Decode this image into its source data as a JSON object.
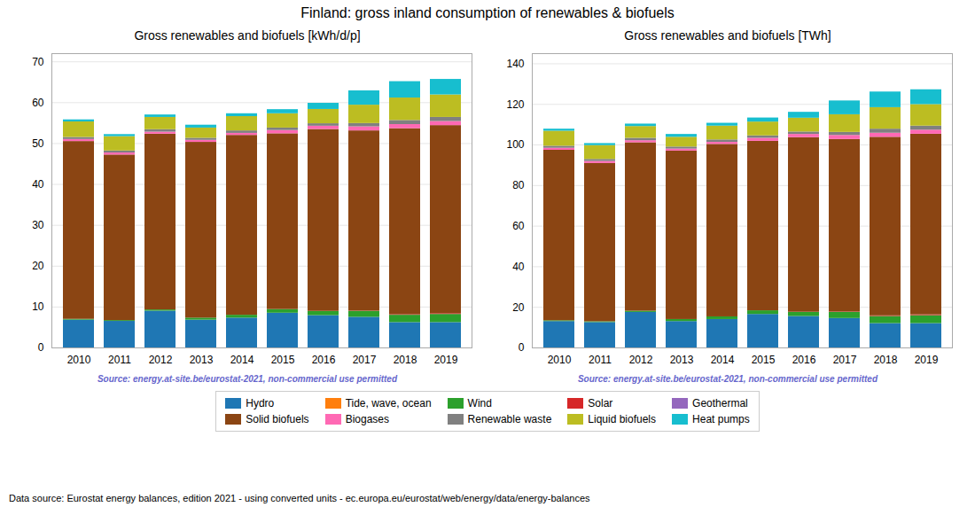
{
  "title": "Finland: gross inland consumption of renewables & biofuels",
  "legend": "bottom",
  "annotations": [
    "Data source: Eurostat energy balances, edition 2021 - using converted units - ec.europa.eu/eurostat/web/energy/data/energy-balances"
  ],
  "chart_data": [
    {
      "type": "bar",
      "stacked": true,
      "grid": true,
      "subtitle": "Gross renewables and biofuels [kWh/d/p]",
      "annotations": [
        "Source: energy.at-site.be/eurostat-2021, non-commercial use permitted"
      ],
      "categories": [
        "2010",
        "2011",
        "2012",
        "2013",
        "2014",
        "2015",
        "2016",
        "2017",
        "2018",
        "2019"
      ],
      "series": [
        {
          "name": "Hydro",
          "color": "#1f77b4",
          "values": [
            6.8,
            6.5,
            9.0,
            6.8,
            7.3,
            8.5,
            7.9,
            7.5,
            6.2,
            6.2
          ]
        },
        {
          "name": "Tide, wave, ocean",
          "color": "#ff7f0e",
          "values": [
            0.0,
            0.0,
            0.0,
            0.0,
            0.0,
            0.0,
            0.0,
            0.0,
            0.0,
            0.0
          ]
        },
        {
          "name": "Wind",
          "color": "#2ca02c",
          "values": [
            0.2,
            0.2,
            0.3,
            0.5,
            0.7,
            0.9,
            1.0,
            1.5,
            1.8,
            2.0
          ]
        },
        {
          "name": "Solar",
          "color": "#d62728",
          "values": [
            0.0,
            0.0,
            0.0,
            0.0,
            0.0,
            0.0,
            0.05,
            0.1,
            0.15,
            0.2
          ]
        },
        {
          "name": "Geothermal",
          "color": "#9467bd",
          "values": [
            0.0,
            0.0,
            0.0,
            0.0,
            0.0,
            0.0,
            0.0,
            0.0,
            0.0,
            0.0
          ]
        },
        {
          "name": "Solid biofuels",
          "color": "#8B4513",
          "values": [
            43.5,
            40.5,
            43.0,
            43.0,
            44.0,
            43.0,
            44.5,
            44.0,
            45.5,
            46.0
          ]
        },
        {
          "name": "Biogases",
          "color": "#ff69b4",
          "values": [
            0.5,
            0.5,
            0.5,
            0.5,
            0.5,
            0.8,
            0.8,
            1.0,
            1.0,
            1.0
          ]
        },
        {
          "name": "Renewable waste",
          "color": "#808080",
          "values": [
            0.5,
            0.5,
            0.6,
            0.5,
            0.6,
            0.6,
            0.6,
            0.8,
            1.0,
            1.0
          ]
        },
        {
          "name": "Liquid biofuels",
          "color": "#bcbd22",
          "values": [
            3.8,
            3.5,
            3.0,
            2.5,
            3.5,
            3.5,
            3.5,
            4.5,
            5.5,
            5.5
          ]
        },
        {
          "name": "Heat pumps",
          "color": "#17becf",
          "values": [
            0.5,
            0.5,
            0.6,
            0.7,
            0.7,
            1.0,
            1.5,
            3.5,
            4.0,
            3.8
          ]
        }
      ],
      "ylim": [
        0,
        72
      ],
      "yticks": [
        0,
        10,
        20,
        30,
        40,
        50,
        60,
        70
      ]
    },
    {
      "type": "bar",
      "stacked": true,
      "grid": true,
      "subtitle": "Gross renewables and biofuels [TWh]",
      "annotations": [
        "Source: energy.at-site.be/eurostat-2021, non-commercial use permitted"
      ],
      "categories": [
        "2010",
        "2011",
        "2012",
        "2013",
        "2014",
        "2015",
        "2016",
        "2017",
        "2018",
        "2019"
      ],
      "series": [
        {
          "name": "Hydro",
          "color": "#1f77b4",
          "values": [
            13.0,
            12.5,
            17.5,
            13.0,
            14.0,
            16.5,
            15.5,
            14.5,
            12.0,
            12.0
          ]
        },
        {
          "name": "Tide, wave, ocean",
          "color": "#ff7f0e",
          "values": [
            0.0,
            0.0,
            0.0,
            0.0,
            0.0,
            0.0,
            0.0,
            0.0,
            0.0,
            0.0
          ]
        },
        {
          "name": "Wind",
          "color": "#2ca02c",
          "values": [
            0.4,
            0.4,
            0.6,
            1.0,
            1.3,
            1.8,
            2.0,
            3.0,
            3.5,
            3.9
          ]
        },
        {
          "name": "Solar",
          "color": "#d62728",
          "values": [
            0.0,
            0.0,
            0.0,
            0.0,
            0.0,
            0.0,
            0.1,
            0.2,
            0.3,
            0.4
          ]
        },
        {
          "name": "Geothermal",
          "color": "#9467bd",
          "values": [
            0.0,
            0.0,
            0.0,
            0.0,
            0.0,
            0.0,
            0.0,
            0.0,
            0.0,
            0.0
          ]
        },
        {
          "name": "Solid biofuels",
          "color": "#8B4513",
          "values": [
            84.0,
            78.0,
            83.0,
            83.0,
            85.0,
            83.5,
            86.0,
            85.0,
            88.0,
            89.0
          ]
        },
        {
          "name": "Biogases",
          "color": "#ff69b4",
          "values": [
            1.0,
            1.0,
            1.0,
            1.0,
            1.0,
            1.5,
            1.6,
            2.0,
            2.0,
            2.0
          ]
        },
        {
          "name": "Renewable waste",
          "color": "#808080",
          "values": [
            1.0,
            1.0,
            1.2,
            1.0,
            1.2,
            1.2,
            1.2,
            1.5,
            2.0,
            2.0
          ]
        },
        {
          "name": "Liquid biofuels",
          "color": "#bcbd22",
          "values": [
            7.4,
            6.8,
            5.8,
            4.8,
            6.8,
            6.8,
            6.8,
            8.7,
            10.6,
            10.6
          ]
        },
        {
          "name": "Heat pumps",
          "color": "#17becf",
          "values": [
            1.0,
            1.0,
            1.2,
            1.4,
            1.4,
            2.0,
            2.9,
            6.8,
            7.7,
            7.3
          ]
        }
      ],
      "ylim": [
        0,
        145
      ],
      "yticks": [
        0,
        20,
        40,
        60,
        80,
        100,
        120,
        140
      ]
    }
  ]
}
